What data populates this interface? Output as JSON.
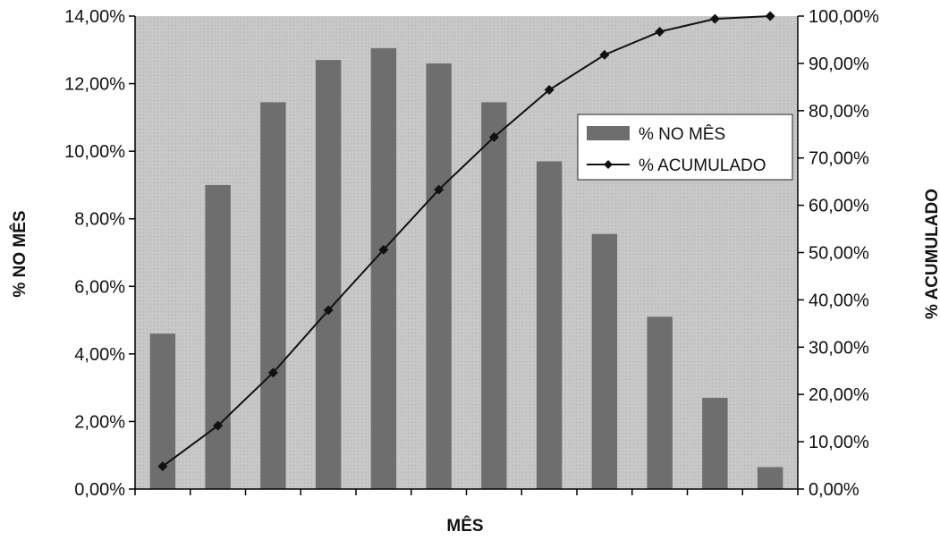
{
  "chart_data": {
    "type": "bar",
    "categories": [
      "",
      "",
      "",
      "",
      "",
      "",
      "",
      "",
      "",
      "",
      "",
      ""
    ],
    "series": [
      {
        "name": "% NO MÊS",
        "type": "bar",
        "axis": "left",
        "values": [
          4.6,
          9.0,
          11.45,
          12.7,
          13.05,
          12.6,
          11.45,
          9.7,
          7.55,
          5.1,
          2.7,
          0.65
        ]
      },
      {
        "name": "% ACUMULADO",
        "type": "line",
        "axis": "right",
        "marker": "diamond",
        "values": [
          4.8,
          13.4,
          24.6,
          37.8,
          50.6,
          63.3,
          74.4,
          84.4,
          91.8,
          96.7,
          99.4,
          100.0
        ]
      }
    ],
    "xlabel": "MÊS",
    "ylabel": "% NO MÊS",
    "y2label": "% ACUMULADO",
    "ylim": [
      0,
      14
    ],
    "y2lim": [
      0,
      100
    ],
    "yticks": [
      "0,00%",
      "2,00%",
      "4,00%",
      "6,00%",
      "8,00%",
      "10,00%",
      "12,00%",
      "14,00%"
    ],
    "y2ticks": [
      "0,00%",
      "10,00%",
      "20,00%",
      "30,00%",
      "40,00%",
      "50,00%",
      "60,00%",
      "70,00%",
      "80,00%",
      "90,00%",
      "100,00%"
    ],
    "legend": {
      "position": "right",
      "entries": [
        "% NO MÊS",
        "% ACUMULADO"
      ]
    },
    "grid": false,
    "colors": {
      "plot_bg": "#c9c9c9",
      "bar": "#6e6e6e",
      "line": "#111111"
    }
  }
}
